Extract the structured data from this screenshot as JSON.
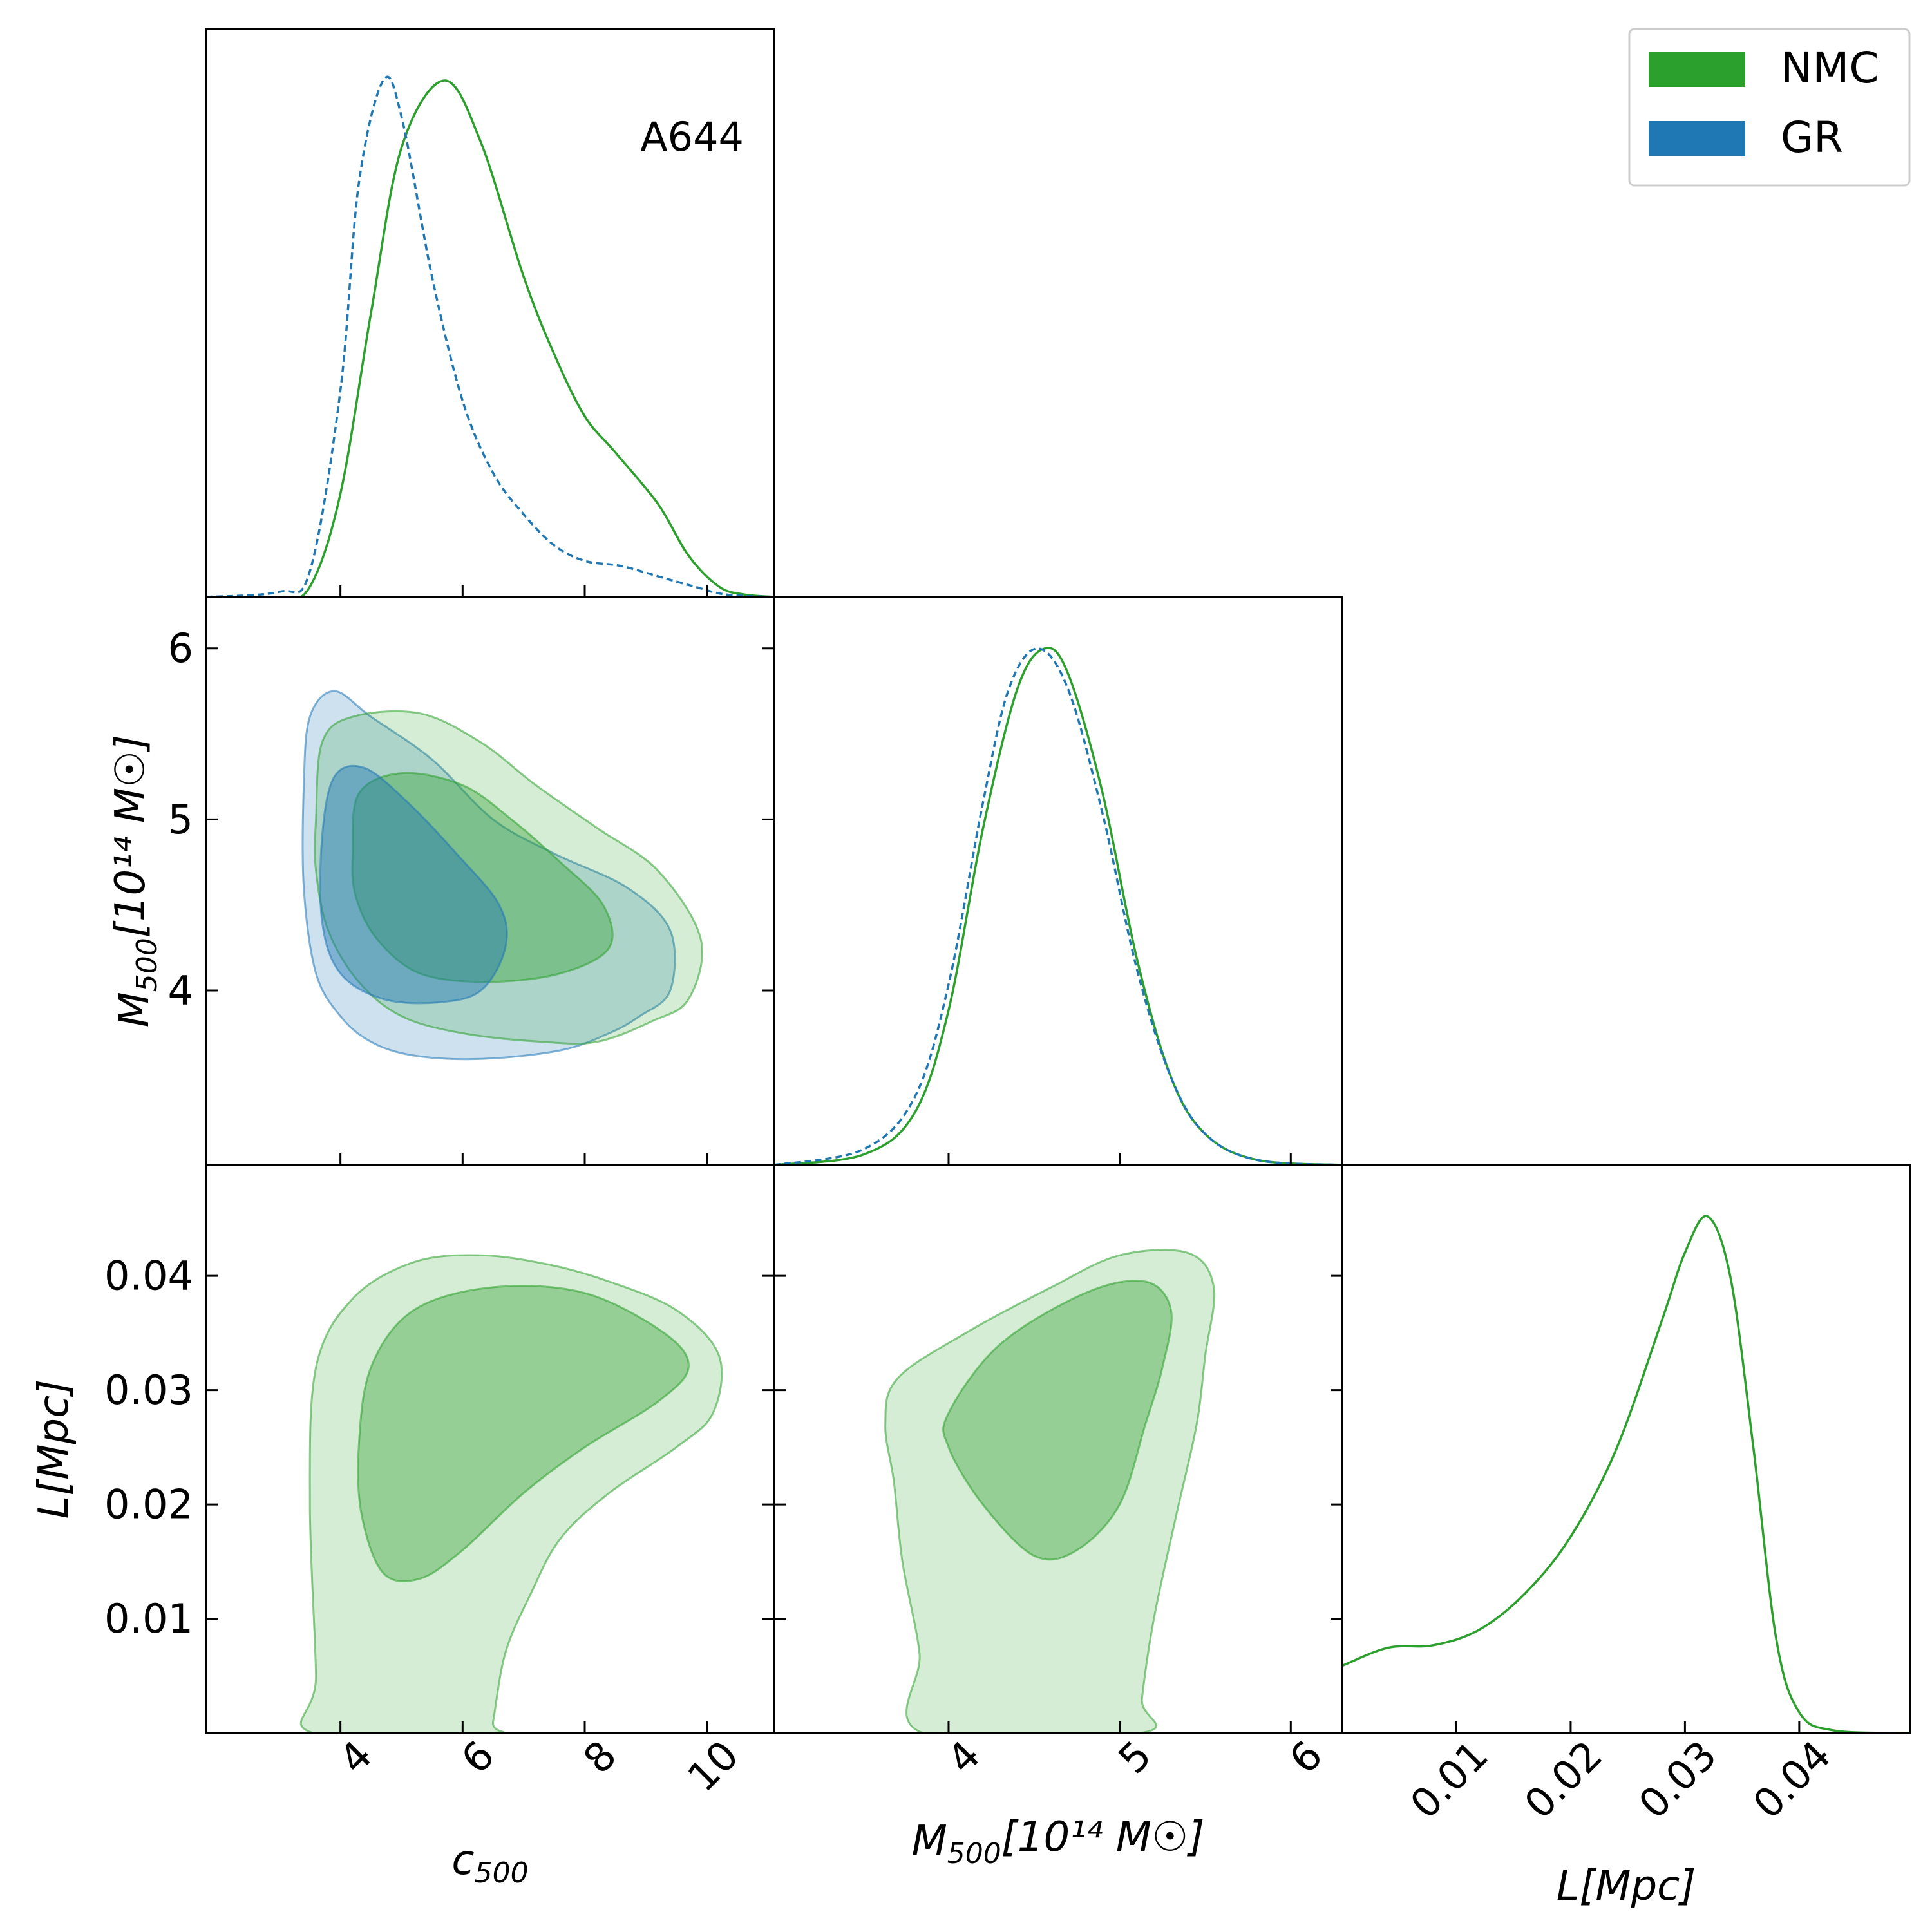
{
  "chart_data": {
    "type": "corner",
    "annotation": "A644",
    "legend": {
      "position": "top-right",
      "entries": [
        {
          "label": "NMC",
          "color": "#2ca02c",
          "line": "solid"
        },
        {
          "label": "GR",
          "color": "#1f77b4",
          "line": "dashed"
        }
      ]
    },
    "colors": {
      "nmc": "#2ca02c",
      "gr": "#1f77b4"
    },
    "params": [
      {
        "key": "c500",
        "label_main": "c",
        "label_sub": "500",
        "label_unit": "",
        "range": [
          1.8,
          11.1
        ],
        "ticks": [
          4,
          6,
          8,
          10
        ],
        "tick_labels": [
          "4",
          "6",
          "8",
          "10"
        ]
      },
      {
        "key": "M500",
        "label_main": "M",
        "label_sub": "500",
        "label_unit": "[10¹⁴ M☉]",
        "range": [
          2.98,
          6.3
        ],
        "ticks": [
          4,
          5,
          6
        ],
        "tick_labels": [
          "4",
          "5",
          "6"
        ]
      },
      {
        "key": "L",
        "label_main": "L",
        "label_sub": "",
        "label_unit": "[Mpc]",
        "range": [
          0.0,
          0.0497
        ],
        "ticks": [
          0.01,
          0.02,
          0.03,
          0.04
        ],
        "tick_labels": [
          "0.01",
          "0.02",
          "0.03",
          "0.04"
        ]
      }
    ],
    "marginals": [
      {
        "param": 0,
        "series": [
          {
            "name": "NMC",
            "style": "solid",
            "x": [
              1.8,
              3.0,
              3.5,
              4.0,
              4.5,
              5.0,
              5.7,
              6.3,
              7.0,
              7.5,
              8.0,
              8.5,
              9.2,
              9.7,
              10.2,
              10.6,
              11.1
            ],
            "y": [
              0,
              0.0,
              0.02,
              0.2,
              0.55,
              0.87,
              1.0,
              0.88,
              0.62,
              0.47,
              0.35,
              0.28,
              0.18,
              0.08,
              0.02,
              0.005,
              0
            ]
          },
          {
            "name": "GR",
            "style": "dashed",
            "x": [
              1.8,
              3.0,
              3.5,
              4.0,
              4.3,
              4.7,
              5.0,
              5.5,
              6.0,
              6.5,
              7.0,
              7.5,
              8.0,
              8.6,
              9.2,
              9.8,
              10.3,
              11.1
            ],
            "y": [
              0,
              0.01,
              0.05,
              0.4,
              0.8,
              1.0,
              0.93,
              0.62,
              0.38,
              0.24,
              0.16,
              0.1,
              0.07,
              0.06,
              0.04,
              0.02,
              0.005,
              0
            ]
          }
        ]
      },
      {
        "param": 1,
        "series": [
          {
            "name": "NMC",
            "style": "solid",
            "x": [
              2.98,
              3.5,
              3.8,
              4.0,
              4.2,
              4.4,
              4.56,
              4.7,
              4.9,
              5.1,
              5.3,
              5.5,
              5.8,
              6.3
            ],
            "y": [
              0,
              0.02,
              0.1,
              0.3,
              0.65,
              0.92,
              1.0,
              0.95,
              0.72,
              0.4,
              0.17,
              0.06,
              0.01,
              0
            ]
          },
          {
            "name": "GR",
            "style": "dashed",
            "x": [
              2.98,
              3.5,
              3.8,
              4.0,
              4.2,
              4.35,
              4.52,
              4.7,
              4.9,
              5.1,
              5.3,
              5.5,
              5.8,
              6.3
            ],
            "y": [
              0,
              0.03,
              0.13,
              0.35,
              0.7,
              0.92,
              1.0,
              0.92,
              0.68,
              0.38,
              0.17,
              0.06,
              0.01,
              0
            ]
          }
        ]
      },
      {
        "param": 2,
        "series": [
          {
            "name": "NMC",
            "style": "solid",
            "x": [
              0.0,
              0.004,
              0.008,
              0.012,
              0.016,
              0.02,
              0.024,
              0.028,
              0.03,
              0.032,
              0.034,
              0.036,
              0.038,
              0.04,
              0.043,
              0.0497
            ],
            "y": [
              0.13,
              0.165,
              0.17,
              0.2,
              0.27,
              0.38,
              0.55,
              0.8,
              0.93,
              1.0,
              0.88,
              0.55,
              0.18,
              0.04,
              0.005,
              0
            ]
          }
        ]
      }
    ],
    "contours": [
      {
        "row": 1,
        "col": 0,
        "xparam": 0,
        "yparam": 1,
        "regions": [
          {
            "series": "GR",
            "level": "95%",
            "points": [
              [
                3.5,
                5.6
              ],
              [
                3.9,
                5.75
              ],
              [
                4.5,
                5.6
              ],
              [
                5.5,
                5.35
              ],
              [
                6.5,
                5.0
              ],
              [
                7.5,
                4.8
              ],
              [
                8.7,
                4.6
              ],
              [
                9.4,
                4.35
              ],
              [
                9.4,
                4.0
              ],
              [
                8.9,
                3.85
              ],
              [
                8.4,
                3.75
              ],
              [
                7.6,
                3.65
              ],
              [
                6.3,
                3.6
              ],
              [
                5.2,
                3.62
              ],
              [
                4.5,
                3.7
              ],
              [
                4.0,
                3.85
              ],
              [
                3.6,
                4.1
              ],
              [
                3.4,
                4.6
              ],
              [
                3.4,
                5.2
              ]
            ]
          },
          {
            "series": "NMC",
            "level": "95%",
            "points": [
              [
                3.6,
                5.0
              ],
              [
                3.7,
                5.45
              ],
              [
                4.2,
                5.6
              ],
              [
                5.3,
                5.62
              ],
              [
                6.3,
                5.45
              ],
              [
                7.2,
                5.2
              ],
              [
                8.2,
                4.95
              ],
              [
                9.2,
                4.7
              ],
              [
                9.9,
                4.3
              ],
              [
                9.7,
                3.95
              ],
              [
                9.1,
                3.82
              ],
              [
                8.2,
                3.7
              ],
              [
                7.3,
                3.7
              ],
              [
                6.0,
                3.75
              ],
              [
                5.0,
                3.85
              ],
              [
                4.3,
                4.05
              ],
              [
                3.8,
                4.35
              ],
              [
                3.6,
                4.7
              ]
            ]
          },
          {
            "series": "NMC",
            "level": "68%",
            "points": [
              [
                4.2,
                4.8
              ],
              [
                4.3,
                5.15
              ],
              [
                5.0,
                5.27
              ],
              [
                6.0,
                5.2
              ],
              [
                6.8,
                5.0
              ],
              [
                7.6,
                4.75
              ],
              [
                8.3,
                4.5
              ],
              [
                8.4,
                4.25
              ],
              [
                7.6,
                4.1
              ],
              [
                6.4,
                4.05
              ],
              [
                5.3,
                4.1
              ],
              [
                4.6,
                4.3
              ],
              [
                4.25,
                4.55
              ]
            ]
          },
          {
            "series": "GR",
            "level": "68%",
            "points": [
              [
                3.7,
                4.9
              ],
              [
                3.9,
                5.25
              ],
              [
                4.4,
                5.3
              ],
              [
                5.1,
                5.1
              ],
              [
                5.9,
                4.8
              ],
              [
                6.6,
                4.5
              ],
              [
                6.7,
                4.25
              ],
              [
                6.3,
                4.0
              ],
              [
                5.6,
                3.93
              ],
              [
                4.7,
                3.95
              ],
              [
                4.0,
                4.1
              ],
              [
                3.7,
                4.4
              ]
            ]
          }
        ]
      },
      {
        "row": 2,
        "col": 0,
        "xparam": 0,
        "yparam": 2,
        "regions": [
          {
            "series": "NMC",
            "level": "95%",
            "points": [
              [
                3.55,
                0.0
              ],
              [
                3.6,
                0.005
              ],
              [
                3.5,
                0.02
              ],
              [
                3.6,
                0.032
              ],
              [
                4.2,
                0.038
              ],
              [
                5.2,
                0.0412
              ],
              [
                6.3,
                0.0418
              ],
              [
                7.4,
                0.041
              ],
              [
                8.4,
                0.0395
              ],
              [
                9.5,
                0.037
              ],
              [
                10.2,
                0.033
              ],
              [
                10.1,
                0.028
              ],
              [
                9.5,
                0.025
              ],
              [
                8.4,
                0.021
              ],
              [
                7.6,
                0.017
              ],
              [
                7.1,
                0.012
              ],
              [
                6.7,
                0.007
              ],
              [
                6.5,
                0.001
              ],
              [
                6.45,
                0.0
              ]
            ]
          },
          {
            "series": "NMC",
            "level": "68%",
            "points": [
              [
                4.3,
                0.025
              ],
              [
                4.5,
                0.032
              ],
              [
                5.2,
                0.037
              ],
              [
                6.5,
                0.039
              ],
              [
                8.0,
                0.0385
              ],
              [
                9.3,
                0.035
              ],
              [
                9.7,
                0.032
              ],
              [
                9.2,
                0.029
              ],
              [
                8.0,
                0.025
              ],
              [
                7.0,
                0.021
              ],
              [
                6.0,
                0.016
              ],
              [
                5.3,
                0.0135
              ],
              [
                4.7,
                0.014
              ],
              [
                4.35,
                0.019
              ]
            ]
          }
        ]
      },
      {
        "row": 2,
        "col": 1,
        "xparam": 1,
        "yparam": 2,
        "regions": [
          {
            "series": "NMC",
            "level": "95%",
            "points": [
              [
                3.85,
                0.0
              ],
              [
                3.83,
                0.007
              ],
              [
                3.73,
                0.015
              ],
              [
                3.68,
                0.022
              ],
              [
                3.63,
                0.027
              ],
              [
                3.7,
                0.031
              ],
              [
                4.1,
                0.035
              ],
              [
                4.6,
                0.039
              ],
              [
                5.0,
                0.0418
              ],
              [
                5.4,
                0.042
              ],
              [
                5.55,
                0.039
              ],
              [
                5.5,
                0.033
              ],
              [
                5.45,
                0.027
              ],
              [
                5.33,
                0.019
              ],
              [
                5.2,
                0.01
              ],
              [
                5.13,
                0.003
              ],
              [
                5.12,
                0.0
              ]
            ]
          },
          {
            "series": "NMC",
            "level": "68%",
            "points": [
              [
                4.0,
                0.028
              ],
              [
                4.3,
                0.034
              ],
              [
                4.8,
                0.0385
              ],
              [
                5.15,
                0.0395
              ],
              [
                5.3,
                0.037
              ],
              [
                5.25,
                0.032
              ],
              [
                5.15,
                0.027
              ],
              [
                5.0,
                0.02
              ],
              [
                4.75,
                0.016
              ],
              [
                4.5,
                0.0155
              ],
              [
                4.2,
                0.02
              ],
              [
                4.0,
                0.025
              ]
            ]
          }
        ]
      }
    ]
  }
}
